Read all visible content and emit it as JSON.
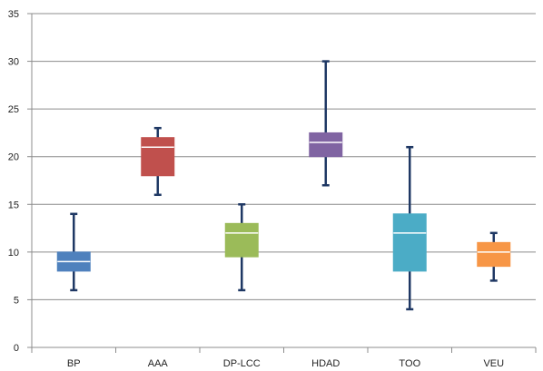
{
  "chart_data": {
    "type": "box",
    "title": "",
    "xlabel": "",
    "ylabel": "",
    "ylim": [
      0,
      35
    ],
    "yticks": [
      0,
      5,
      10,
      15,
      20,
      25,
      30,
      35
    ],
    "ytick_labels": [
      "0",
      "5",
      "10",
      "15",
      "20",
      "25",
      "30",
      "35"
    ],
    "grid": true,
    "legend": "none",
    "categories": [
      "BP",
      "AAA",
      "DP-LCC",
      "HDAD",
      "TQO",
      "VEU"
    ],
    "boxes": [
      {
        "label": "BP",
        "min": 6,
        "q1": 8,
        "median": 9,
        "q3": 10,
        "max": 14,
        "color": "#4F81BD",
        "whisker_color": "#1F3864"
      },
      {
        "label": "AAA",
        "min": 16,
        "q1": 18,
        "median": 21,
        "q3": 22,
        "max": 23,
        "color": "#C0504D",
        "whisker_color": "#1F3864"
      },
      {
        "label": "DP-LCC",
        "min": 6,
        "q1": 9.5,
        "median": 12,
        "q3": 13,
        "max": 15,
        "color": "#9BBB59",
        "whisker_color": "#1F3864"
      },
      {
        "label": "HDAD",
        "min": 17,
        "q1": 20,
        "median": 21.5,
        "q3": 22.5,
        "max": 30,
        "color": "#8064A2",
        "whisker_color": "#1F3864"
      },
      {
        "label": "TQO",
        "min": 4,
        "q1": 8,
        "median": 12,
        "q3": 14,
        "max": 21,
        "color": "#4BACC6",
        "whisker_color": "#1F3864"
      },
      {
        "label": "VEU",
        "min": 7,
        "q1": 8.5,
        "median": 10,
        "q3": 11,
        "max": 12,
        "color": "#F79646",
        "whisker_color": "#1F3864"
      }
    ],
    "gridline_color": "#8C8C8C",
    "median_color": "#ffffff"
  }
}
